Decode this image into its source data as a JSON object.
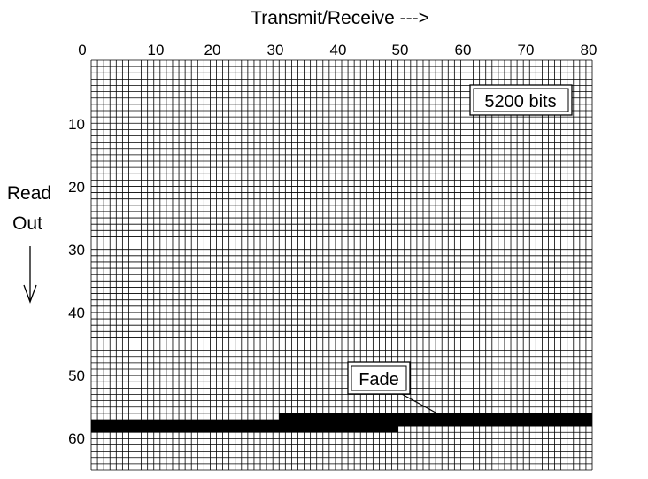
{
  "figure": {
    "x_axis_title": "Transmit/Receive --->",
    "y_axis_title_lines": [
      "Read",
      "Out"
    ],
    "y_arrow_icon": "down-arrow-icon",
    "x_ticks": [
      "0",
      "10",
      "20",
      "30",
      "40",
      "50",
      "60",
      "70",
      "80"
    ],
    "y_ticks": [
      "10",
      "20",
      "30",
      "40",
      "50",
      "60"
    ],
    "bits_label": "5200 bits",
    "fade_label": "Fade",
    "colors": {
      "grid": "#000000",
      "background": "#ffffff",
      "fade": "#000000"
    }
  },
  "chart_data": {
    "type": "heatmap",
    "grid": {
      "columns": 80,
      "rows": 65,
      "x_range": [
        0,
        80
      ],
      "y_range": [
        0,
        65
      ]
    },
    "title": "",
    "xlabel": "Transmit/Receive --->",
    "ylabel": "Read Out",
    "annotations": [
      "5200 bits",
      "Fade"
    ],
    "faded_region": [
      {
        "x": [
          0,
          30
        ],
        "y": [
          57,
          59
        ]
      },
      {
        "x": [
          30,
          49
        ],
        "y": [
          56,
          59
        ]
      },
      {
        "x": [
          49,
          80
        ],
        "y": [
          56,
          58
        ]
      }
    ]
  }
}
